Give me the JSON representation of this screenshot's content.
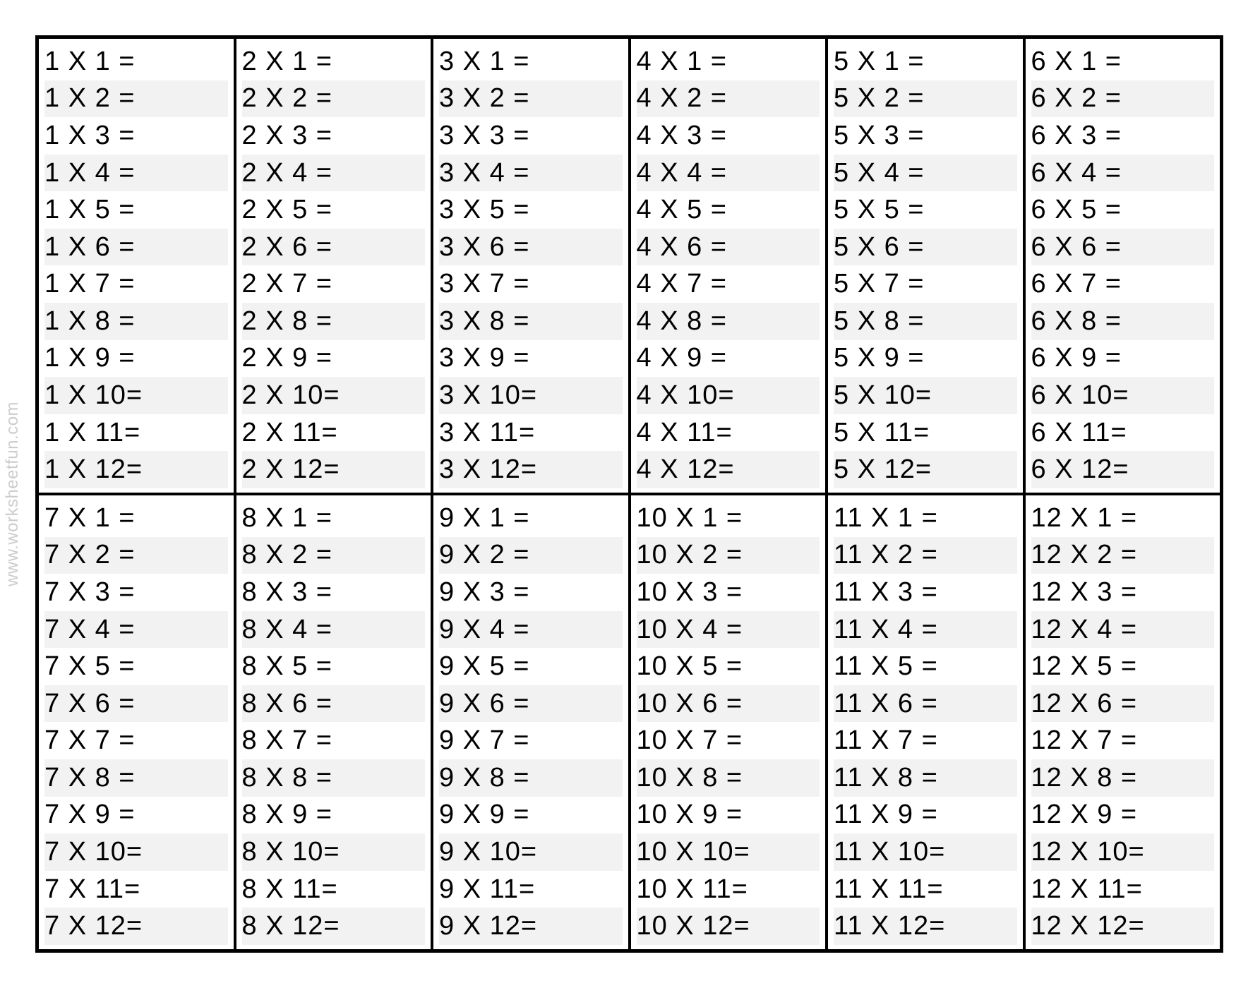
{
  "worksheet": {
    "watermark": "www.worksheetfun.com",
    "type": "table",
    "multiplier_symbol": "X",
    "equals_symbol": "=",
    "multipliers": [
      1,
      2,
      3,
      4,
      5,
      6,
      7,
      8,
      9,
      10,
      11,
      12
    ],
    "multiplicands": [
      1,
      2,
      3,
      4,
      5,
      6,
      7,
      8,
      9,
      10,
      11,
      12
    ],
    "grid": {
      "rows": 2,
      "cols": 6
    },
    "colors": {
      "background": "#ffffff",
      "text": "#000000",
      "border": "#000000",
      "stripe": "#f2f2f2",
      "watermark": "#cccccc"
    },
    "font": {
      "family": "Comic Sans MS",
      "size_eq": 38,
      "size_watermark": 24
    },
    "cells": [
      {
        "base": 1,
        "rows": [
          "1 X 1 =",
          "1 X 2 =",
          "1 X 3 =",
          "1 X 4 =",
          "1 X 5 =",
          "1 X 6 =",
          "1 X 7 =",
          "1 X 8 =",
          "1 X 9 =",
          "1 X 10=",
          "1 X 11=",
          "1 X 12="
        ]
      },
      {
        "base": 2,
        "rows": [
          "2 X 1 =",
          "2 X 2 =",
          "2 X 3 =",
          "2 X 4 =",
          "2 X 5 =",
          "2 X 6 =",
          "2 X 7 =",
          "2 X 8 =",
          "2 X 9 =",
          "2 X 10=",
          "2 X 11=",
          "2 X 12="
        ]
      },
      {
        "base": 3,
        "rows": [
          "3 X 1 =",
          "3 X 2 =",
          "3 X 3 =",
          "3 X 4 =",
          "3 X 5 =",
          "3 X 6 =",
          "3 X 7 =",
          "3 X 8 =",
          "3 X 9 =",
          "3 X 10=",
          "3 X 11=",
          "3 X 12="
        ]
      },
      {
        "base": 4,
        "rows": [
          "4 X 1 =",
          "4 X 2 =",
          "4 X 3 =",
          "4 X 4 =",
          "4 X 5 =",
          "4 X 6 =",
          "4 X 7 =",
          "4 X 8 =",
          "4 X 9 =",
          "4 X 10=",
          "4 X 11=",
          "4 X 12="
        ]
      },
      {
        "base": 5,
        "rows": [
          "5 X 1 =",
          "5 X 2 =",
          "5 X 3 =",
          "5 X 4 =",
          "5 X 5 =",
          "5 X 6 =",
          "5 X 7 =",
          "5 X 8 =",
          "5 X 9 =",
          "5 X 10=",
          "5 X 11=",
          "5 X 12="
        ]
      },
      {
        "base": 6,
        "rows": [
          "6 X 1 =",
          "6 X 2 =",
          "6 X 3 =",
          "6 X 4 =",
          "6 X 5 =",
          "6 X 6 =",
          "6 X 7 =",
          "6 X 8 =",
          "6 X 9 =",
          "6 X 10=",
          "6 X 11=",
          "6 X 12="
        ]
      },
      {
        "base": 7,
        "rows": [
          "7 X 1 =",
          "7 X 2 =",
          "7 X 3 =",
          "7 X 4 =",
          "7 X 5 =",
          "7 X 6 =",
          "7 X 7 =",
          "7 X 8 =",
          "7 X 9 =",
          "7 X 10=",
          "7 X 11=",
          "7 X 12="
        ]
      },
      {
        "base": 8,
        "rows": [
          "8 X 1 =",
          "8 X 2 =",
          "8 X 3 =",
          "8 X 4 =",
          "8 X 5 =",
          "8 X 6 =",
          "8 X 7 =",
          "8 X 8 =",
          "8 X 9 =",
          "8 X 10=",
          "8 X 11=",
          "8 X 12="
        ]
      },
      {
        "base": 9,
        "rows": [
          "9 X 1 =",
          "9 X 2 =",
          "9 X 3 =",
          "9 X 4 =",
          "9 X 5 =",
          "9 X 6 =",
          "9 X 7 =",
          "9 X 8 =",
          "9 X 9 =",
          "9 X 10=",
          "9 X 11=",
          "9 X 12="
        ]
      },
      {
        "base": 10,
        "rows": [
          "10 X 1 =",
          "10 X 2 =",
          "10 X 3 =",
          "10 X 4 =",
          "10 X 5 =",
          "10 X 6 =",
          "10 X 7 =",
          "10 X 8 =",
          "10 X 9 =",
          "10 X 10=",
          "10 X 11=",
          "10 X 12="
        ]
      },
      {
        "base": 11,
        "rows": [
          "11 X 1 =",
          "11 X 2 =",
          "11 X 3 =",
          "11 X 4 =",
          "11 X 5 =",
          "11 X 6 =",
          "11 X 7 =",
          "11 X 8 =",
          "11 X 9 =",
          "11 X 10=",
          "11 X 11=",
          "11 X 12="
        ]
      },
      {
        "base": 12,
        "rows": [
          "12 X 1 =",
          "12 X 2 =",
          "12 X 3 =",
          "12 X 4 =",
          "12 X 5 =",
          "12 X 6 =",
          "12 X 7 =",
          "12 X 8 =",
          "12 X 9 =",
          "12 X 10=",
          "12 X 11=",
          "12 X 12="
        ]
      }
    ]
  }
}
